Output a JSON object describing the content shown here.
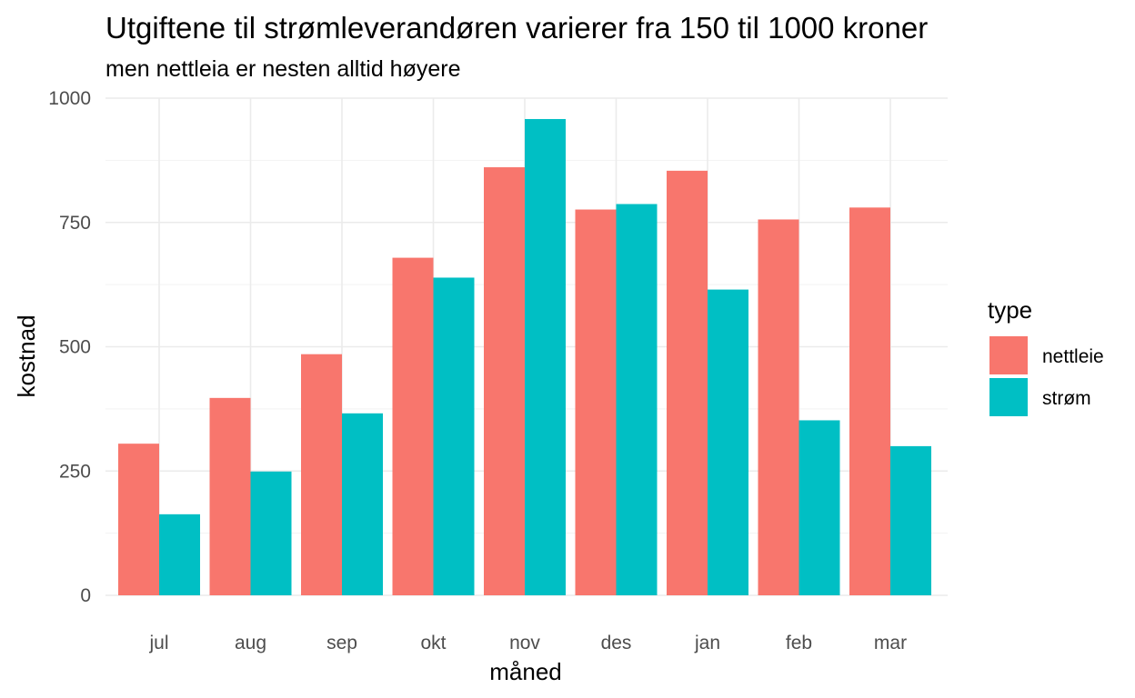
{
  "chart_data": {
    "type": "bar",
    "title": "Utgiftene til strømleverandøren varierer fra 150 til 1000 kroner",
    "subtitle": "men nettleia er nesten alltid høyere",
    "xlabel": "måned",
    "ylabel": "kostnad",
    "categories": [
      "jul",
      "aug",
      "sep",
      "okt",
      "nov",
      "des",
      "jan",
      "feb",
      "mar"
    ],
    "series": [
      {
        "name": "nettleie",
        "color": "#F8766D",
        "values": [
          305,
          397,
          485,
          679,
          861,
          776,
          854,
          756,
          780
        ]
      },
      {
        "name": "strøm",
        "color": "#00BFC4",
        "values": [
          163,
          249,
          366,
          639,
          958,
          787,
          615,
          352,
          300
        ]
      }
    ],
    "ylim": [
      0,
      1000
    ],
    "yticks": [
      0,
      250,
      500,
      750,
      1000
    ],
    "legend": {
      "title": "type",
      "position": "right"
    },
    "grid": true
  }
}
